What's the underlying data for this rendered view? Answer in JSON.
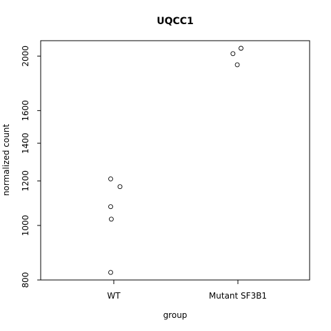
{
  "chart_data": {
    "type": "scatter",
    "title": "UQCC1",
    "xlabel": "group",
    "ylabel": "normalized count",
    "y_scale": "log",
    "ylim": [
      800,
      2130
    ],
    "grid": false,
    "categories": [
      "WT",
      "Mutant SF3B1"
    ],
    "y_ticks": [
      800,
      1000,
      1200,
      1400,
      1600,
      2000
    ],
    "points": [
      {
        "category": "WT",
        "jitter": -0.05,
        "y": 1210
      },
      {
        "category": "WT",
        "jitter": 0.1,
        "y": 1172
      },
      {
        "category": "WT",
        "jitter": -0.05,
        "y": 1080
      },
      {
        "category": "WT",
        "jitter": -0.04,
        "y": 1026
      },
      {
        "category": "WT",
        "jitter": -0.05,
        "y": 825
      },
      {
        "category": "Mutant SF3B1",
        "jitter": 0.05,
        "y": 2065
      },
      {
        "category": "Mutant SF3B1",
        "jitter": -0.08,
        "y": 2020
      },
      {
        "category": "Mutant SF3B1",
        "jitter": -0.01,
        "y": 1930
      }
    ]
  }
}
